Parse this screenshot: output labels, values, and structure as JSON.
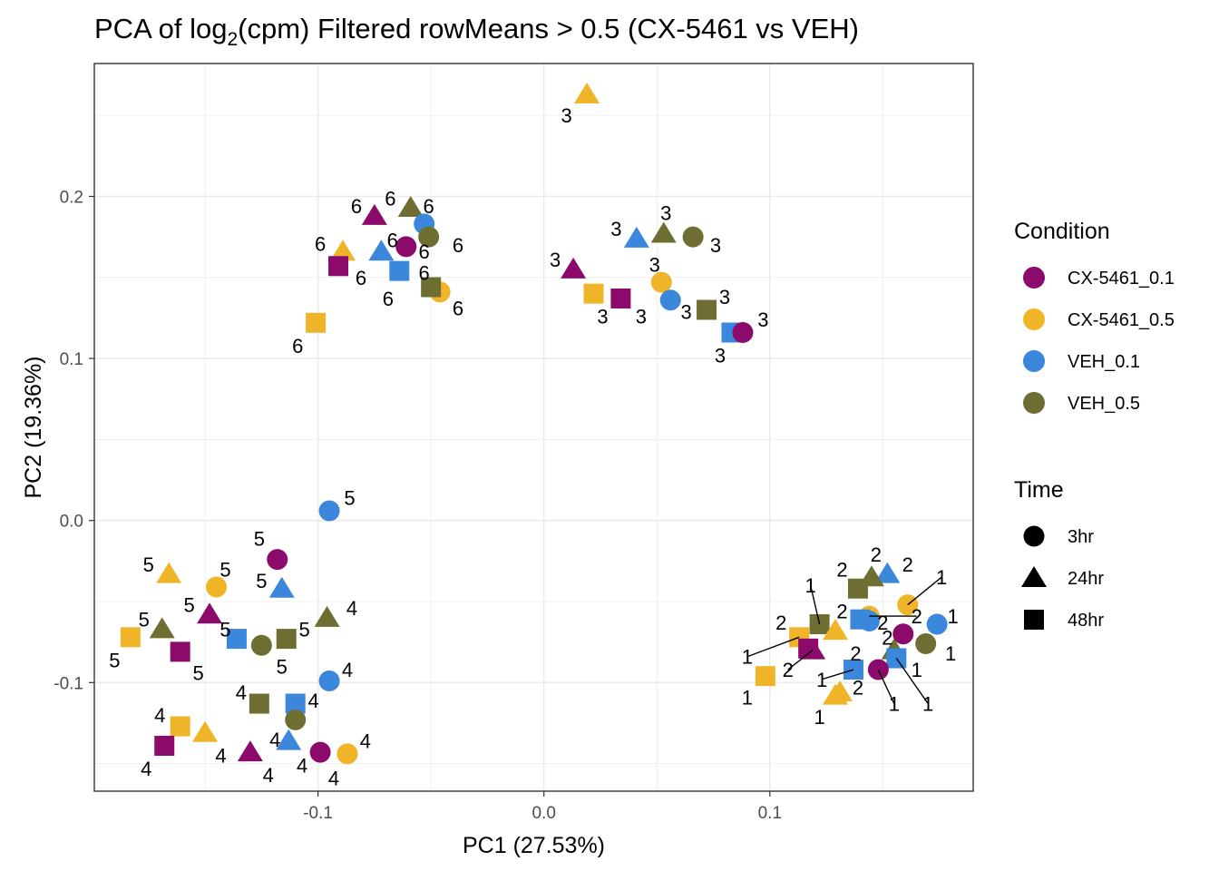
{
  "chart_data": {
    "type": "scatter",
    "title_main": "PCA of log",
    "title_sub": "2",
    "title_rest": "(cpm) Filtered rowMeans > 0.5 (CX-5461 vs VEH)",
    "xlabel": "PC1 (27.53%)",
    "ylabel": "PC2 (19.36%)",
    "xlim": [
      -0.199,
      0.19
    ],
    "ylim": [
      -0.167,
      0.282
    ],
    "x_ticks": [
      -0.1,
      0.0,
      0.1
    ],
    "x_tick_labels": [
      "-0.1",
      "0.0",
      "0.1"
    ],
    "y_ticks": [
      -0.1,
      0.0,
      0.1,
      0.2
    ],
    "y_tick_labels": [
      "-0.1",
      "0.0",
      "0.1",
      "0.2"
    ],
    "grid": true,
    "legend_position": "right",
    "condition_legend_title": "Condition",
    "time_legend_title": "Time",
    "conditions": [
      {
        "name": "CX-5461_0.1",
        "color": "#8B0A6B"
      },
      {
        "name": "CX-5461_0.5",
        "color": "#F0B428"
      },
      {
        "name": "VEH_0.1",
        "color": "#3A87DC"
      },
      {
        "name": "VEH_0.5",
        "color": "#6E6E32"
      }
    ],
    "times": [
      {
        "name": "3hr",
        "shape": "circle"
      },
      {
        "name": "24hr",
        "shape": "triangle"
      },
      {
        "name": "48hr",
        "shape": "square"
      }
    ],
    "points": [
      {
        "x": 0.019,
        "y": 0.263,
        "c": 1,
        "t": 1,
        "label": "3",
        "lx": 0.01,
        "ly": 0.25
      },
      {
        "x": 0.053,
        "y": 0.177,
        "c": 3,
        "t": 1,
        "label": "3",
        "lx": 0.054,
        "ly": 0.19
      },
      {
        "x": 0.066,
        "y": 0.175,
        "c": 3,
        "t": 0,
        "label": "3",
        "lx": 0.076,
        "ly": 0.17
      },
      {
        "x": 0.041,
        "y": 0.174,
        "c": 2,
        "t": 1,
        "label": "3",
        "lx": 0.032,
        "ly": 0.18
      },
      {
        "x": 0.013,
        "y": 0.155,
        "c": 0,
        "t": 1,
        "label": "3",
        "lx": 0.005,
        "ly": 0.161
      },
      {
        "x": 0.052,
        "y": 0.147,
        "c": 1,
        "t": 0,
        "label": "3",
        "lx": 0.049,
        "ly": 0.158
      },
      {
        "x": 0.022,
        "y": 0.14,
        "c": 1,
        "t": 2,
        "label": "3",
        "lx": 0.026,
        "ly": 0.126
      },
      {
        "x": 0.034,
        "y": 0.137,
        "c": 0,
        "t": 2,
        "label": "3",
        "lx": 0.043,
        "ly": 0.126
      },
      {
        "x": 0.056,
        "y": 0.136,
        "c": 2,
        "t": 0,
        "label": "3",
        "lx": 0.063,
        "ly": 0.129
      },
      {
        "x": 0.072,
        "y": 0.13,
        "c": 3,
        "t": 2,
        "label": "3",
        "lx": 0.08,
        "ly": 0.138
      },
      {
        "x": 0.083,
        "y": 0.116,
        "c": 2,
        "t": 2,
        "label": "3",
        "lx": 0.078,
        "ly": 0.102
      },
      {
        "x": 0.088,
        "y": 0.116,
        "c": 0,
        "t": 0,
        "label": "3",
        "lx": 0.097,
        "ly": 0.124
      },
      {
        "x": -0.059,
        "y": 0.193,
        "c": 3,
        "t": 1,
        "label": "6",
        "lx": -0.068,
        "ly": 0.199
      },
      {
        "x": -0.053,
        "y": 0.183,
        "c": 2,
        "t": 0,
        "label": "6",
        "lx": -0.051,
        "ly": 0.194
      },
      {
        "x": -0.075,
        "y": 0.188,
        "c": 0,
        "t": 1,
        "label": "6",
        "lx": -0.083,
        "ly": 0.194
      },
      {
        "x": -0.089,
        "y": 0.166,
        "c": 1,
        "t": 1,
        "label": "6",
        "lx": -0.099,
        "ly": 0.171
      },
      {
        "x": -0.072,
        "y": 0.166,
        "c": 2,
        "t": 1,
        "label": "6",
        "lx": -0.067,
        "ly": 0.173
      },
      {
        "x": -0.061,
        "y": 0.169,
        "c": 0,
        "t": 0,
        "label": "6",
        "lx": -0.053,
        "ly": 0.166
      },
      {
        "x": -0.051,
        "y": 0.175,
        "c": 3,
        "t": 0,
        "label": "6",
        "lx": -0.038,
        "ly": 0.17
      },
      {
        "x": -0.091,
        "y": 0.157,
        "c": 0,
        "t": 2,
        "label": "6",
        "lx": -0.081,
        "ly": 0.15
      },
      {
        "x": -0.064,
        "y": 0.154,
        "c": 2,
        "t": 2,
        "label": "6",
        "lx": -0.053,
        "ly": 0.153
      },
      {
        "x": -0.046,
        "y": 0.141,
        "c": 1,
        "t": 0,
        "label": "6",
        "lx": -0.038,
        "ly": 0.131
      },
      {
        "x": -0.05,
        "y": 0.144,
        "c": 3,
        "t": 2,
        "label": "6",
        "lx": -0.069,
        "ly": 0.137
      },
      {
        "x": -0.101,
        "y": 0.122,
        "c": 1,
        "t": 2,
        "label": "6",
        "lx": -0.109,
        "ly": 0.108
      },
      {
        "x": -0.095,
        "y": 0.006,
        "c": 2,
        "t": 0,
        "label": "5",
        "lx": -0.086,
        "ly": 0.014
      },
      {
        "x": -0.118,
        "y": -0.024,
        "c": 0,
        "t": 0,
        "label": "5",
        "lx": -0.126,
        "ly": -0.011
      },
      {
        "x": -0.166,
        "y": -0.033,
        "c": 1,
        "t": 1,
        "label": "5",
        "lx": -0.175,
        "ly": -0.027
      },
      {
        "x": -0.145,
        "y": -0.041,
        "c": 1,
        "t": 0,
        "label": "5",
        "lx": -0.141,
        "ly": -0.03
      },
      {
        "x": -0.116,
        "y": -0.042,
        "c": 2,
        "t": 1,
        "label": "5",
        "lx": -0.125,
        "ly": -0.037
      },
      {
        "x": -0.096,
        "y": -0.06,
        "c": 3,
        "t": 1,
        "label": "4",
        "lx": -0.085,
        "ly": -0.054
      },
      {
        "x": -0.148,
        "y": -0.058,
        "c": 0,
        "t": 1,
        "label": "5",
        "lx": -0.157,
        "ly": -0.052
      },
      {
        "x": -0.169,
        "y": -0.067,
        "c": 3,
        "t": 1,
        "label": "5",
        "lx": -0.177,
        "ly": -0.061
      },
      {
        "x": -0.136,
        "y": -0.073,
        "c": 2,
        "t": 2,
        "label": "5",
        "lx": -0.141,
        "ly": -0.067
      },
      {
        "x": -0.114,
        "y": -0.073,
        "c": 3,
        "t": 2,
        "label": "5",
        "lx": -0.106,
        "ly": -0.067
      },
      {
        "x": -0.125,
        "y": -0.077,
        "c": 3,
        "t": 0,
        "label": "5",
        "lx": -0.116,
        "ly": -0.09
      },
      {
        "x": -0.183,
        "y": -0.072,
        "c": 1,
        "t": 2,
        "label": "5",
        "lx": -0.19,
        "ly": -0.086
      },
      {
        "x": -0.161,
        "y": -0.081,
        "c": 0,
        "t": 2,
        "label": "5",
        "lx": -0.153,
        "ly": -0.094
      },
      {
        "x": -0.095,
        "y": -0.099,
        "c": 2,
        "t": 0,
        "label": "4",
        "lx": -0.087,
        "ly": -0.092
      },
      {
        "x": -0.126,
        "y": -0.113,
        "c": 3,
        "t": 2,
        "label": "4",
        "lx": -0.134,
        "ly": -0.106
      },
      {
        "x": -0.11,
        "y": -0.113,
        "c": 2,
        "t": 2,
        "label": "4",
        "lx": -0.102,
        "ly": -0.111
      },
      {
        "x": -0.11,
        "y": -0.123,
        "c": 3,
        "t": 0,
        "label": "4",
        "lx": -0.119,
        "ly": -0.135
      },
      {
        "x": -0.161,
        "y": -0.127,
        "c": 1,
        "t": 2,
        "label": "4",
        "lx": -0.17,
        "ly": -0.12
      },
      {
        "x": -0.15,
        "y": -0.131,
        "c": 1,
        "t": 1,
        "label": "4",
        "lx": -0.143,
        "ly": -0.145
      },
      {
        "x": -0.168,
        "y": -0.139,
        "c": 0,
        "t": 2,
        "label": "4",
        "lx": -0.176,
        "ly": -0.153
      },
      {
        "x": -0.113,
        "y": -0.136,
        "c": 2,
        "t": 1,
        "label": "4",
        "lx": -0.107,
        "ly": -0.151
      },
      {
        "x": -0.13,
        "y": -0.143,
        "c": 0,
        "t": 1,
        "label": "4",
        "lx": -0.122,
        "ly": -0.157
      },
      {
        "x": -0.099,
        "y": -0.143,
        "c": 0,
        "t": 0,
        "label": "4",
        "lx": -0.093,
        "ly": -0.159
      },
      {
        "x": -0.087,
        "y": -0.144,
        "c": 1,
        "t": 0,
        "label": "4",
        "lx": -0.079,
        "ly": -0.136
      },
      {
        "x": 0.152,
        "y": -0.033,
        "c": 2,
        "t": 1,
        "label": "2",
        "lx": 0.161,
        "ly": -0.027
      },
      {
        "x": 0.145,
        "y": -0.035,
        "c": 3,
        "t": 1,
        "label": "2",
        "lx": 0.147,
        "ly": -0.021
      },
      {
        "x": 0.161,
        "y": -0.052,
        "c": 1,
        "t": 0,
        "label": "1",
        "lx": 0.176,
        "ly": -0.035,
        "line": true
      },
      {
        "x": 0.139,
        "y": -0.042,
        "c": 3,
        "t": 2,
        "label": "2",
        "lx": 0.132,
        "ly": -0.03
      },
      {
        "x": 0.144,
        "y": -0.059,
        "c": 1,
        "t": 0,
        "label": "2",
        "lx": 0.165,
        "ly": -0.059,
        "line": true
      },
      {
        "x": 0.144,
        "y": -0.062,
        "c": 2,
        "t": 0,
        "label": "2",
        "lx": 0.132,
        "ly": -0.056
      },
      {
        "x": 0.14,
        "y": -0.061,
        "c": 2,
        "t": 2,
        "label": "2",
        "lx": 0.15,
        "ly": -0.063
      },
      {
        "x": 0.174,
        "y": -0.064,
        "c": 2,
        "t": 0,
        "label": "1",
        "lx": 0.181,
        "ly": -0.059
      },
      {
        "x": 0.122,
        "y": -0.064,
        "c": 3,
        "t": 2,
        "label": "1",
        "lx": 0.118,
        "ly": -0.04,
        "line": true
      },
      {
        "x": 0.129,
        "y": -0.068,
        "c": 1,
        "t": 1,
        "label": "2",
        "lx": 0.105,
        "ly": -0.063
      },
      {
        "x": 0.159,
        "y": -0.07,
        "c": 0,
        "t": 0,
        "label": "2",
        "lx": 0.152,
        "ly": -0.072
      },
      {
        "x": 0.113,
        "y": -0.072,
        "c": 1,
        "t": 2,
        "label": "1",
        "lx": 0.09,
        "ly": -0.084,
        "line": true
      },
      {
        "x": 0.169,
        "y": -0.076,
        "c": 3,
        "t": 0,
        "label": "1",
        "lx": 0.18,
        "ly": -0.082
      },
      {
        "x": 0.155,
        "y": -0.08,
        "c": 3,
        "t": 1,
        "label": "1",
        "lx": 0.165,
        "ly": -0.092
      },
      {
        "x": 0.119,
        "y": -0.08,
        "c": 0,
        "t": 1,
        "label": "2",
        "lx": 0.108,
        "ly": -0.092,
        "line": true
      },
      {
        "x": 0.117,
        "y": -0.079,
        "c": 0,
        "t": 2,
        "label": "2",
        "lx": 0.138,
        "ly": -0.082
      },
      {
        "x": 0.156,
        "y": -0.085,
        "c": 2,
        "t": 2,
        "label": "1",
        "lx": 0.17,
        "ly": -0.113,
        "line": true
      },
      {
        "x": 0.137,
        "y": -0.092,
        "c": 2,
        "t": 2,
        "label": "1",
        "lx": 0.123,
        "ly": -0.098,
        "line": true
      },
      {
        "x": 0.148,
        "y": -0.092,
        "c": 0,
        "t": 0,
        "label": "1",
        "lx": 0.155,
        "ly": -0.113,
        "line": true
      },
      {
        "x": 0.098,
        "y": -0.096,
        "c": 1,
        "t": 2,
        "label": "1",
        "lx": 0.09,
        "ly": -0.109
      },
      {
        "x": 0.131,
        "y": -0.106,
        "c": 1,
        "t": 1,
        "label": "2",
        "lx": 0.139,
        "ly": -0.103
      },
      {
        "x": 0.129,
        "y": -0.108,
        "c": 1,
        "t": 1,
        "label": "1",
        "lx": 0.122,
        "ly": -0.121
      }
    ]
  }
}
